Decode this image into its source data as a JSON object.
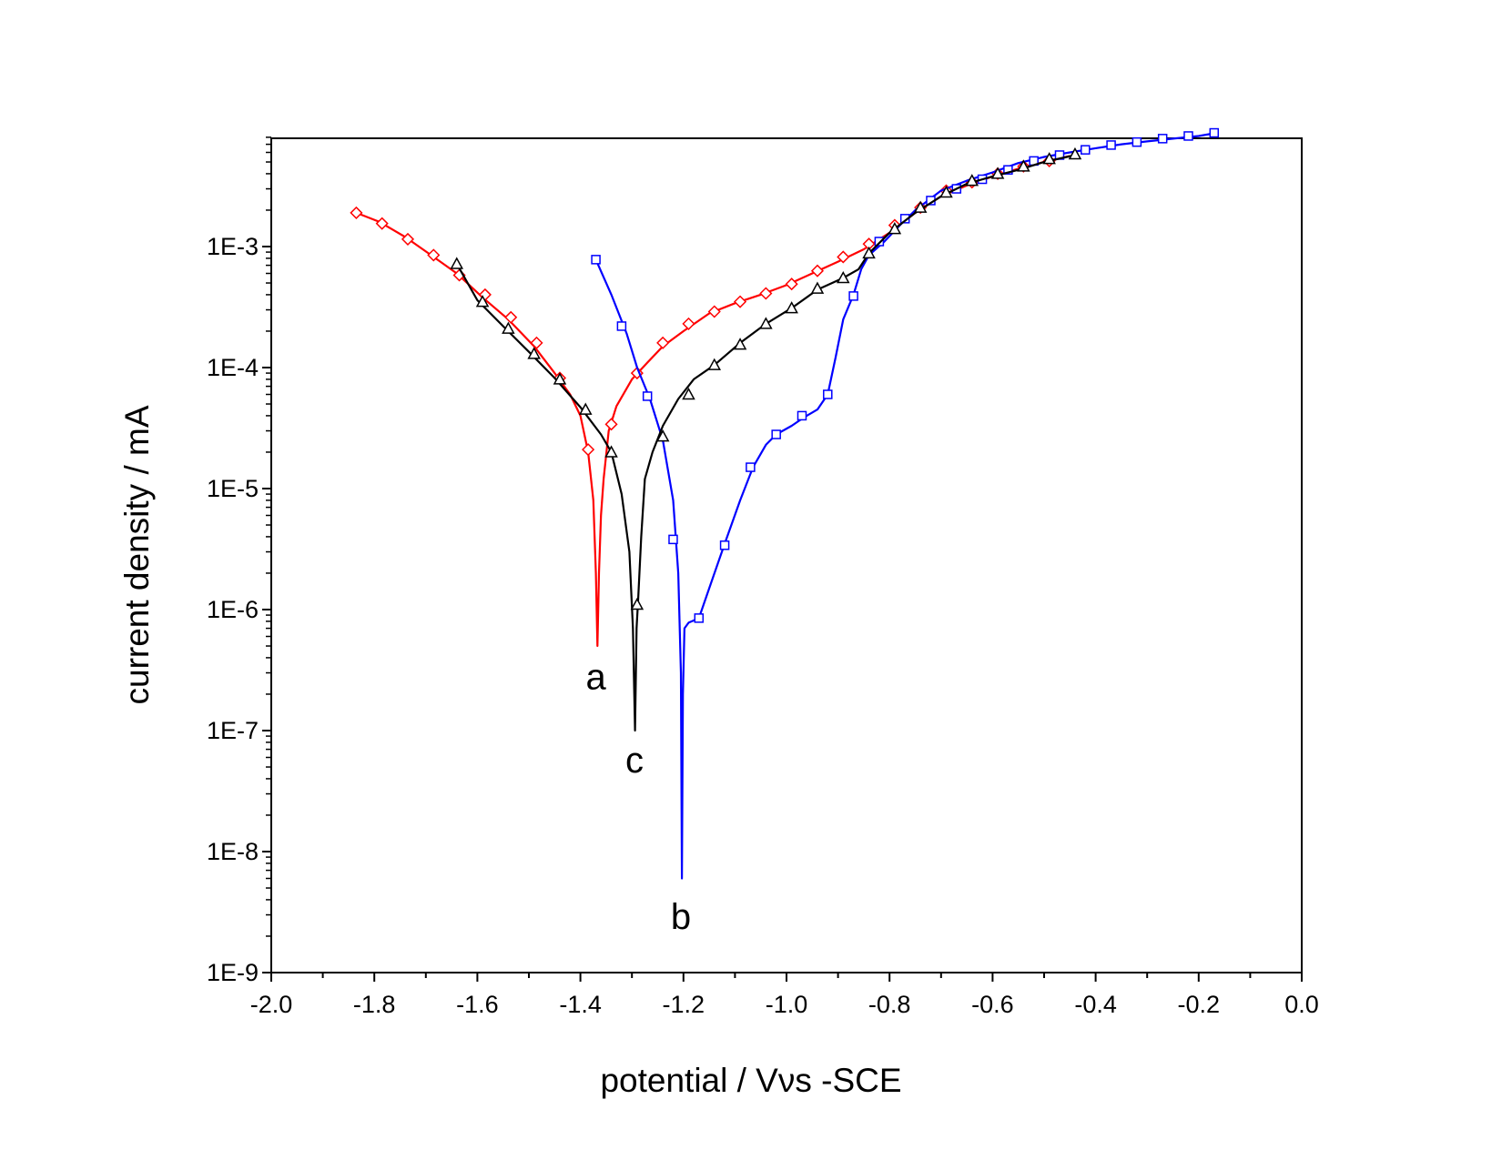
{
  "chart_data": {
    "type": "line",
    "title": "",
    "xlabel": "potential / Vνs -SCE",
    "ylabel": "current density / mA",
    "xlim": [
      -2.0,
      0.0
    ],
    "ylim": [
      1e-09,
      0.009
    ],
    "yscale": "log",
    "grid": false,
    "x_ticks": [
      "-2.0",
      "-1.8",
      "-1.6",
      "-1.4",
      "-1.2",
      "-1.0",
      "-0.8",
      "-0.6",
      "-0.4",
      "-0.2",
      "0.0"
    ],
    "y_ticks": [
      "1E-9",
      "1E-8",
      "1E-7",
      "1E-6",
      "1E-5",
      "1E-4",
      "1E-3"
    ],
    "series": [
      {
        "label": "a",
        "color": "#ff0000",
        "marker": "diamond",
        "line": [
          [
            -1.835,
            0.0019
          ],
          [
            -1.79,
            0.0016
          ],
          [
            -1.74,
            0.0012
          ],
          [
            -1.69,
            0.00085
          ],
          [
            -1.64,
            0.0006
          ],
          [
            -1.59,
            0.00038
          ],
          [
            -1.54,
            0.00025
          ],
          [
            -1.49,
            0.00015
          ],
          [
            -1.45,
            9e-05
          ],
          [
            -1.42,
            6e-05
          ],
          [
            -1.4,
            4e-05
          ],
          [
            -1.385,
            2e-05
          ],
          [
            -1.375,
            8e-06
          ],
          [
            -1.37,
            2e-06
          ],
          [
            -1.367,
            5e-07
          ],
          [
            -1.364,
            2e-06
          ],
          [
            -1.36,
            6e-06
          ],
          [
            -1.355,
            1.2e-05
          ],
          [
            -1.345,
            3e-05
          ],
          [
            -1.33,
            4.8e-05
          ],
          [
            -1.3,
            8e-05
          ],
          [
            -1.27,
            0.00011
          ],
          [
            -1.24,
            0.00015
          ],
          [
            -1.2,
            0.0002
          ],
          [
            -1.15,
            0.00028
          ],
          [
            -1.1,
            0.00034
          ],
          [
            -1.05,
            0.0004
          ],
          [
            -1.0,
            0.00048
          ],
          [
            -0.95,
            0.0006
          ],
          [
            -0.9,
            0.00075
          ],
          [
            -0.85,
            0.00095
          ],
          [
            -0.8,
            0.0013
          ],
          [
            -0.75,
            0.0019
          ],
          [
            -0.7,
            0.0026
          ],
          [
            -0.65,
            0.0032
          ],
          [
            -0.6,
            0.0038
          ],
          [
            -0.55,
            0.0044
          ],
          [
            -0.5,
            0.005
          ],
          [
            -0.45,
            0.0056
          ]
        ],
        "markers": [
          [
            -1.835,
            0.0019
          ],
          [
            -1.785,
            0.00155
          ],
          [
            -1.735,
            0.00115
          ],
          [
            -1.685,
            0.00085
          ],
          [
            -1.635,
            0.00058
          ],
          [
            -1.585,
            0.0004
          ],
          [
            -1.535,
            0.00026
          ],
          [
            -1.485,
            0.00016
          ],
          [
            -1.44,
            8.2e-05
          ],
          [
            -1.385,
            2.1e-05
          ],
          [
            -1.34,
            3.4e-05
          ],
          [
            -1.29,
            9e-05
          ],
          [
            -1.24,
            0.00016
          ],
          [
            -1.19,
            0.00023
          ],
          [
            -1.14,
            0.00029
          ],
          [
            -1.09,
            0.00035
          ],
          [
            -1.04,
            0.00041
          ],
          [
            -0.99,
            0.00049
          ],
          [
            -0.94,
            0.00063
          ],
          [
            -0.89,
            0.00082
          ],
          [
            -0.84,
            0.00105
          ],
          [
            -0.79,
            0.0015
          ],
          [
            -0.74,
            0.0021
          ],
          [
            -0.69,
            0.0029
          ],
          [
            -0.64,
            0.0034
          ],
          [
            -0.59,
            0.004
          ],
          [
            -0.54,
            0.0046
          ],
          [
            -0.49,
            0.0051
          ]
        ]
      },
      {
        "label": "b",
        "color": "#0000ff",
        "marker": "square",
        "line": [
          [
            -1.37,
            0.00078
          ],
          [
            -1.34,
            0.0004
          ],
          [
            -1.31,
            0.00019
          ],
          [
            -1.29,
            0.0001
          ],
          [
            -1.265,
            5.5e-05
          ],
          [
            -1.24,
            2.5e-05
          ],
          [
            -1.22,
            8e-06
          ],
          [
            -1.21,
            2e-06
          ],
          [
            -1.205,
            3e-07
          ],
          [
            -1.203,
            6e-09
          ],
          [
            -1.201,
            2e-07
          ],
          [
            -1.198,
            7e-07
          ],
          [
            -1.19,
            7.8e-07
          ],
          [
            -1.17,
            8.5e-07
          ],
          [
            -1.15,
            1.5e-06
          ],
          [
            -1.12,
            3.5e-06
          ],
          [
            -1.09,
            8e-06
          ],
          [
            -1.065,
            1.5e-05
          ],
          [
            -1.04,
            2.3e-05
          ],
          [
            -1.02,
            2.8e-05
          ],
          [
            -0.99,
            3.3e-05
          ],
          [
            -0.965,
            3.9e-05
          ],
          [
            -0.94,
            4.5e-05
          ],
          [
            -0.92,
            6e-05
          ],
          [
            -0.905,
            0.00012
          ],
          [
            -0.89,
            0.00025
          ],
          [
            -0.87,
            0.0004
          ],
          [
            -0.855,
            0.00065
          ],
          [
            -0.84,
            0.00085
          ],
          [
            -0.81,
            0.0011
          ],
          [
            -0.78,
            0.0015
          ],
          [
            -0.75,
            0.002
          ],
          [
            -0.7,
            0.0029
          ],
          [
            -0.65,
            0.0035
          ],
          [
            -0.6,
            0.0041
          ],
          [
            -0.55,
            0.0049
          ],
          [
            -0.5,
            0.0055
          ],
          [
            -0.45,
            0.006
          ],
          [
            -0.4,
            0.0065
          ],
          [
            -0.35,
            0.007
          ],
          [
            -0.3,
            0.0074
          ],
          [
            -0.25,
            0.0078
          ],
          [
            -0.2,
            0.0082
          ],
          [
            -0.165,
            0.0087
          ]
        ],
        "markers": [
          [
            -1.37,
            0.00078
          ],
          [
            -1.32,
            0.00022
          ],
          [
            -1.27,
            5.8e-05
          ],
          [
            -1.22,
            3.8e-06
          ],
          [
            -1.17,
            8.5e-07
          ],
          [
            -1.12,
            3.4e-06
          ],
          [
            -1.07,
            1.5e-05
          ],
          [
            -1.02,
            2.8e-05
          ],
          [
            -0.97,
            4e-05
          ],
          [
            -0.92,
            6e-05
          ],
          [
            -0.87,
            0.00039
          ],
          [
            -0.82,
            0.0011
          ],
          [
            -0.77,
            0.0017
          ],
          [
            -0.72,
            0.0024
          ],
          [
            -0.67,
            0.003
          ],
          [
            -0.62,
            0.0036
          ],
          [
            -0.57,
            0.0043
          ],
          [
            -0.52,
            0.0051
          ],
          [
            -0.47,
            0.0057
          ],
          [
            -0.42,
            0.0063
          ],
          [
            -0.37,
            0.0069
          ],
          [
            -0.32,
            0.0073
          ],
          [
            -0.27,
            0.0078
          ],
          [
            -0.22,
            0.0082
          ],
          [
            -0.17,
            0.0087
          ]
        ]
      },
      {
        "label": "c",
        "color": "#000000",
        "marker": "triangle",
        "line": [
          [
            -1.64,
            0.00072
          ],
          [
            -1.6,
            0.00036
          ],
          [
            -1.55,
            0.00022
          ],
          [
            -1.5,
            0.000135
          ],
          [
            -1.45,
            8.2e-05
          ],
          [
            -1.4,
            4.7e-05
          ],
          [
            -1.36,
            2.8e-05
          ],
          [
            -1.34,
            2e-05
          ],
          [
            -1.32,
            9e-06
          ],
          [
            -1.305,
            3e-06
          ],
          [
            -1.298,
            7e-07
          ],
          [
            -1.294,
            1e-07
          ],
          [
            -1.291,
            7e-07
          ],
          [
            -1.288,
            1.2e-06
          ],
          [
            -1.282,
            4e-06
          ],
          [
            -1.275,
            1.2e-05
          ],
          [
            -1.26,
            2e-05
          ],
          [
            -1.24,
            3.3e-05
          ],
          [
            -1.21,
            5.5e-05
          ],
          [
            -1.18,
            8e-05
          ],
          [
            -1.14,
            0.000105
          ],
          [
            -1.09,
            0.00016
          ],
          [
            -1.04,
            0.00023
          ],
          [
            -0.99,
            0.00031
          ],
          [
            -0.94,
            0.00044
          ],
          [
            -0.89,
            0.00055
          ],
          [
            -0.86,
            0.00065
          ],
          [
            -0.84,
            0.00088
          ],
          [
            -0.8,
            0.0013
          ],
          [
            -0.75,
            0.0019
          ],
          [
            -0.7,
            0.0026
          ],
          [
            -0.65,
            0.0033
          ],
          [
            -0.6,
            0.0038
          ],
          [
            -0.55,
            0.0043
          ],
          [
            -0.5,
            0.005
          ],
          [
            -0.44,
            0.0057
          ]
        ],
        "markers": [
          [
            -1.64,
            0.00072
          ],
          [
            -1.59,
            0.00035
          ],
          [
            -1.54,
            0.00021
          ],
          [
            -1.49,
            0.00013
          ],
          [
            -1.44,
            8e-05
          ],
          [
            -1.39,
            4.5e-05
          ],
          [
            -1.34,
            2e-05
          ],
          [
            -1.29,
            1.1e-06
          ],
          [
            -1.24,
            2.7e-05
          ],
          [
            -1.19,
            6e-05
          ],
          [
            -1.14,
            0.000105
          ],
          [
            -1.09,
            0.000155
          ],
          [
            -1.04,
            0.00023
          ],
          [
            -0.99,
            0.00031
          ],
          [
            -0.94,
            0.00045
          ],
          [
            -0.89,
            0.00055
          ],
          [
            -0.84,
            0.00088
          ],
          [
            -0.79,
            0.0014
          ],
          [
            -0.74,
            0.0021
          ],
          [
            -0.69,
            0.0028
          ],
          [
            -0.64,
            0.0035
          ],
          [
            -0.59,
            0.004
          ],
          [
            -0.54,
            0.0046
          ],
          [
            -0.49,
            0.0053
          ],
          [
            -0.44,
            0.0058
          ]
        ]
      }
    ],
    "annotations": [
      {
        "text": "a",
        "x": -1.37,
        "y": 2.2e-07
      },
      {
        "text": "c",
        "x": -1.295,
        "y": 4.5e-08
      },
      {
        "text": "b",
        "x": -1.205,
        "y": 2.3e-09
      }
    ]
  }
}
